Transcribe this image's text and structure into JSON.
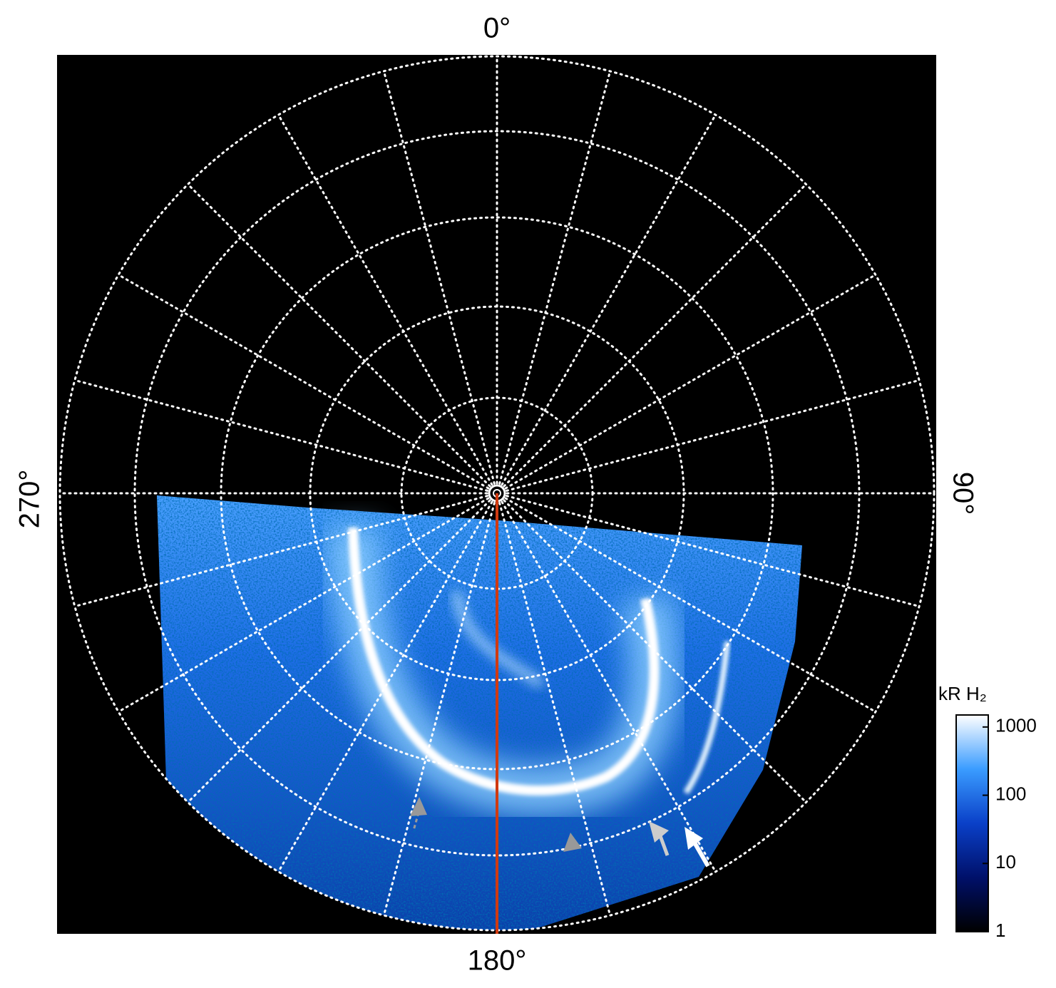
{
  "labels": {
    "top": "0°",
    "right": "90°",
    "bottom": "180°",
    "left": "270°"
  },
  "colorbar": {
    "title": "kR H₂",
    "scale": "log",
    "lim": [
      1,
      1500
    ],
    "ticks": [
      1,
      10,
      100,
      1000
    ]
  }
}
